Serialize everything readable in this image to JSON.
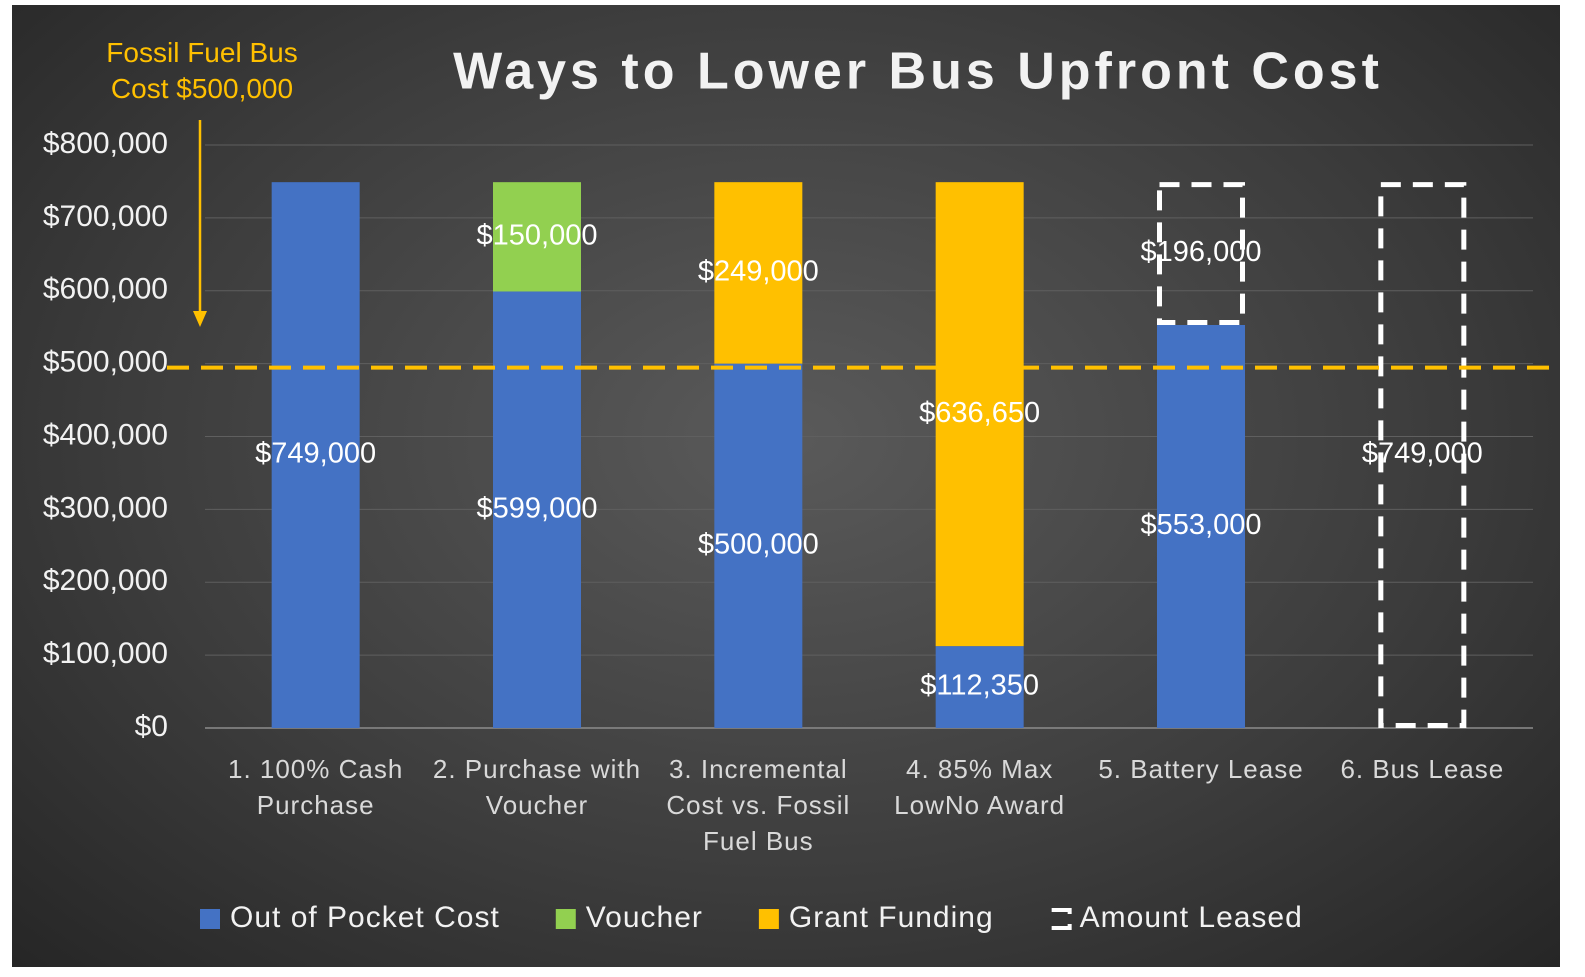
{
  "chart_data": {
    "type": "stacked_bar",
    "title": "Ways to Lower Bus Upfront Cost",
    "categories": [
      "1. 100% Cash Purchase",
      "2. Purchase with Voucher",
      "3. Incremental Cost vs. Fossil Fuel Bus",
      "4. 85% Max LowNo Award",
      "5. Battery Lease",
      "6. Bus Lease"
    ],
    "series": [
      {
        "name": "Out of Pocket Cost",
        "color": "#4472c4",
        "style": "solid",
        "values": [
          749000,
          599000,
          500000,
          112350,
          553000,
          null
        ],
        "value_labels": [
          "$749,000",
          "$599,000",
          "$500,000",
          "$112,350",
          "$553,000",
          null
        ]
      },
      {
        "name": "Voucher",
        "color": "#92d050",
        "style": "solid",
        "values": [
          null,
          150000,
          null,
          null,
          null,
          null
        ],
        "value_labels": [
          null,
          "$150,000",
          null,
          null,
          null,
          null
        ]
      },
      {
        "name": "Grant Funding",
        "color": "#ffc000",
        "style": "solid",
        "values": [
          null,
          null,
          249000,
          636650,
          null,
          null
        ],
        "value_labels": [
          null,
          null,
          "$249,000",
          "$636,650",
          null,
          null
        ]
      },
      {
        "name": "Amount Leased",
        "color": "#ffffff",
        "style": "dashed",
        "values": [
          null,
          null,
          null,
          null,
          196000,
          749000
        ],
        "value_labels": [
          null,
          null,
          null,
          null,
          "$196,000",
          "$749,000"
        ]
      }
    ],
    "ylim": [
      0,
      800000
    ],
    "yticks": [
      {
        "value": 0,
        "label": "$0"
      },
      {
        "value": 100000,
        "label": "$100,000"
      },
      {
        "value": 200000,
        "label": "$200,000"
      },
      {
        "value": 300000,
        "label": "$300,000"
      },
      {
        "value": 400000,
        "label": "$400,000"
      },
      {
        "value": 500000,
        "label": "$500,000"
      },
      {
        "value": 600000,
        "label": "$600,000"
      },
      {
        "value": 700000,
        "label": "$700,000"
      },
      {
        "value": 800000,
        "label": "$800,000"
      }
    ],
    "grid": true,
    "legend": "bottom",
    "reference_line": {
      "value": 500000,
      "label": "Fossil Fuel Bus Cost $500,000",
      "color": "#ffc000"
    }
  }
}
